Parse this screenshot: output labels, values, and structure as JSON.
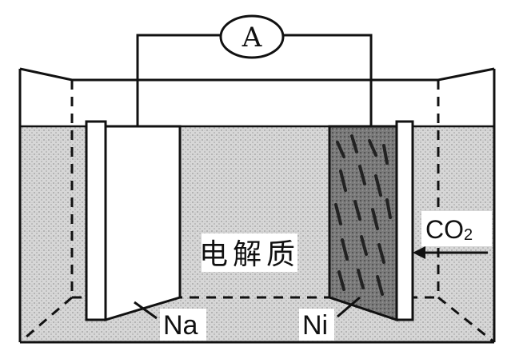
{
  "ammeter": {
    "label": "A"
  },
  "labels": {
    "electrolyte": "电解质",
    "anode": "Na",
    "cathode": "Ni",
    "gas_main": "CO",
    "gas_subscript": "2"
  }
}
